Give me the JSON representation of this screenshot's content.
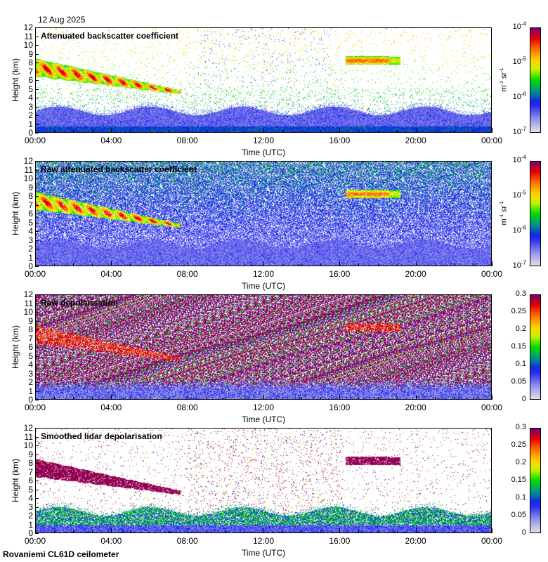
{
  "header": {
    "date": "12 Aug 2025"
  },
  "footer": {
    "site": "Rovaniemi CL61D ceilometer"
  },
  "chart_data": [
    {
      "type": "heatmap",
      "title": "Attenuated backscatter coefficient",
      "xlabel": "Time (UTC)",
      "ylabel": "Height (km)",
      "ylim": [
        0,
        12
      ],
      "xlim_hours": [
        0,
        24
      ],
      "yticks": [
        "0",
        "1",
        "2",
        "3",
        "4",
        "5",
        "6",
        "7",
        "8",
        "9",
        "10",
        "11",
        "12"
      ],
      "xticks": [
        "00:00",
        "04:00",
        "08:00",
        "12:00",
        "16:00",
        "20:00",
        "00:00"
      ],
      "colorbar": {
        "scale": "log",
        "range": [
          1e-07,
          0.0001
        ],
        "ticks": [
          "10",
          "10",
          "10",
          "10"
        ],
        "exps": [
          "-7",
          "-6",
          "-5",
          "-4"
        ],
        "unit_a": "m",
        "unit_a_exp": "-1",
        "unit_b": " sr",
        "unit_b_exp": "-1"
      },
      "features": {
        "cirrus_layer": {
          "start_h": 0,
          "end_h": 7.6,
          "top_km": [
            8.5,
            4.8
          ],
          "base_km": [
            6.3,
            4.3
          ]
        },
        "second_layer": {
          "start_h": 16.3,
          "end_h": 19.2,
          "top_km": 8.7,
          "base_km": 7.7
        },
        "boundary_layer_top_km": 2.8,
        "mode": "clean"
      }
    },
    {
      "type": "heatmap",
      "title": "Raw attenuated backscatter coefficient",
      "xlabel": "Time (UTC)",
      "ylabel": "Height (km)",
      "ylim": [
        0,
        12
      ],
      "yticks": [
        "0",
        "1",
        "2",
        "3",
        "4",
        "5",
        "6",
        "7",
        "8",
        "9",
        "10",
        "11",
        "12"
      ],
      "xticks": [
        "00:00",
        "04:00",
        "08:00",
        "12:00",
        "16:00",
        "20:00",
        "00:00"
      ],
      "colorbar": {
        "scale": "log",
        "range": [
          1e-07,
          0.0001
        ],
        "ticks": [
          "10",
          "10",
          "10",
          "10"
        ],
        "exps": [
          "-7",
          "-6",
          "-5",
          "-4"
        ],
        "unit_a": "m",
        "unit_a_exp": "-1",
        "unit_b": " sr",
        "unit_b_exp": "-1"
      },
      "features": {
        "mode": "raw"
      }
    },
    {
      "type": "heatmap",
      "title": "Raw depolarisation",
      "xlabel": "Time (UTC)",
      "ylabel": "Height (km)",
      "ylim": [
        0,
        12
      ],
      "yticks": [
        "0",
        "1",
        "2",
        "3",
        "4",
        "5",
        "6",
        "7",
        "8",
        "9",
        "10",
        "11",
        "12"
      ],
      "xticks": [
        "00:00",
        "04:00",
        "08:00",
        "12:00",
        "16:00",
        "20:00",
        "00:00"
      ],
      "colorbar": {
        "scale": "linear",
        "range": [
          0,
          0.3
        ],
        "ticks": [
          "0",
          "0.05",
          "0.1",
          "0.15",
          "0.2",
          "0.25",
          "0.3"
        ]
      },
      "features": {
        "mode": "rawdep"
      }
    },
    {
      "type": "heatmap",
      "title": "Smoothed lidar depolarisation",
      "xlabel": "Time (UTC)",
      "ylabel": "Height (km)",
      "ylim": [
        0,
        12
      ],
      "yticks": [
        "0",
        "1",
        "2",
        "3",
        "4",
        "5",
        "6",
        "7",
        "8",
        "9",
        "10",
        "11",
        "12"
      ],
      "xticks": [
        "00:00",
        "04:00",
        "08:00",
        "12:00",
        "16:00",
        "20:00",
        "00:00"
      ],
      "colorbar": {
        "scale": "linear",
        "range": [
          0,
          0.3
        ],
        "ticks": [
          "0",
          "0.05",
          "0.1",
          "0.15",
          "0.2",
          "0.25",
          "0.3"
        ]
      },
      "features": {
        "mode": "dep"
      }
    }
  ]
}
